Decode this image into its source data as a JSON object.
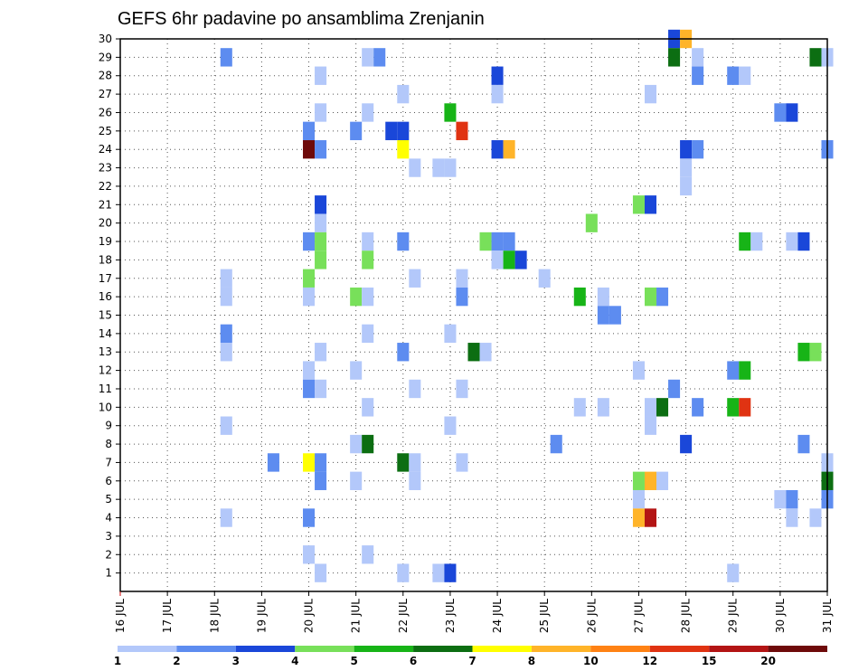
{
  "chart_data": {
    "type": "heatmap",
    "title": "GEFS 6hr padavine po ansamblima Zrenjanin",
    "xlabel": "",
    "ylabel": "",
    "x_tick_labels": [
      "16 JUL",
      "17 JUL",
      "18 JUL",
      "19 JUL",
      "20 JUL",
      "21 JUL",
      "22 JUL",
      "23 JUL",
      "24 JUL",
      "25 JUL",
      "26 JUL",
      "27 JUL",
      "28 JUL",
      "29 JUL",
      "30 JUL",
      "31 JUL"
    ],
    "y_tick_labels": [
      "1",
      "2",
      "3",
      "4",
      "5",
      "6",
      "7",
      "8",
      "9",
      "10",
      "11",
      "12",
      "13",
      "14",
      "15",
      "16",
      "17",
      "18",
      "19",
      "20",
      "21",
      "22",
      "23",
      "24",
      "25",
      "26",
      "27",
      "28",
      "29",
      "30"
    ],
    "xlim_days": [
      0,
      15
    ],
    "ylim_members": [
      0,
      30
    ],
    "grid": true,
    "legend": {
      "placement": "bottom",
      "boundaries": [
        "1",
        "2",
        "3",
        "4",
        "5",
        "6",
        "7",
        "8",
        "10",
        "12",
        "15",
        "20"
      ],
      "colors": [
        "#b3c8fa",
        "#5d8cf0",
        "#1a47d9",
        "#78e05a",
        "#17b417",
        "#0c6e12",
        "#ffff00",
        "#ffb429",
        "#ff8214",
        "#e03312",
        "#b31414",
        "#6e0a0a"
      ]
    },
    "value_unit": "mm per 6h (color class index 0-11)",
    "points": [
      {
        "day": 11.75,
        "member": 30,
        "level": 2
      },
      {
        "day": 12.0,
        "member": 30,
        "level": 7
      },
      {
        "day": 2.25,
        "member": 29,
        "level": 1
      },
      {
        "day": 5.25,
        "member": 29,
        "level": 0
      },
      {
        "day": 5.5,
        "member": 29,
        "level": 1
      },
      {
        "day": 11.75,
        "member": 29,
        "level": 5
      },
      {
        "day": 12.25,
        "member": 29,
        "level": 0
      },
      {
        "day": 14.75,
        "member": 29,
        "level": 5
      },
      {
        "day": 15.0,
        "member": 29,
        "level": 0
      },
      {
        "day": 4.25,
        "member": 28,
        "level": 0
      },
      {
        "day": 8.0,
        "member": 28,
        "level": 2
      },
      {
        "day": 12.25,
        "member": 28,
        "level": 1
      },
      {
        "day": 13.0,
        "member": 28,
        "level": 1
      },
      {
        "day": 13.25,
        "member": 28,
        "level": 0
      },
      {
        "day": 6.0,
        "member": 27,
        "level": 0
      },
      {
        "day": 8.0,
        "member": 27,
        "level": 0
      },
      {
        "day": 11.25,
        "member": 27,
        "level": 0
      },
      {
        "day": 4.25,
        "member": 26,
        "level": 0
      },
      {
        "day": 5.25,
        "member": 26,
        "level": 0
      },
      {
        "day": 7.0,
        "member": 26,
        "level": 4
      },
      {
        "day": 14.0,
        "member": 26,
        "level": 1
      },
      {
        "day": 14.25,
        "member": 26,
        "level": 2
      },
      {
        "day": 4.0,
        "member": 25,
        "level": 1
      },
      {
        "day": 5.0,
        "member": 25,
        "level": 1
      },
      {
        "day": 5.75,
        "member": 25,
        "level": 2
      },
      {
        "day": 6.0,
        "member": 25,
        "level": 2
      },
      {
        "day": 7.25,
        "member": 25,
        "level": 9
      },
      {
        "day": 4.0,
        "member": 24,
        "level": 11
      },
      {
        "day": 4.25,
        "member": 24,
        "level": 1
      },
      {
        "day": 6.0,
        "member": 24,
        "level": 6
      },
      {
        "day": 8.0,
        "member": 24,
        "level": 2
      },
      {
        "day": 8.25,
        "member": 24,
        "level": 7
      },
      {
        "day": 12.0,
        "member": 24,
        "level": 2
      },
      {
        "day": 12.25,
        "member": 24,
        "level": 1
      },
      {
        "day": 15.0,
        "member": 24,
        "level": 1
      },
      {
        "day": 6.25,
        "member": 23,
        "level": 0
      },
      {
        "day": 6.75,
        "member": 23,
        "level": 0
      },
      {
        "day": 7.0,
        "member": 23,
        "level": 0
      },
      {
        "day": 12.0,
        "member": 23,
        "level": 0
      },
      {
        "day": 12.0,
        "member": 22,
        "level": 0
      },
      {
        "day": 4.25,
        "member": 21,
        "level": 2
      },
      {
        "day": 11.0,
        "member": 21,
        "level": 3
      },
      {
        "day": 11.25,
        "member": 21,
        "level": 2
      },
      {
        "day": 4.25,
        "member": 20,
        "level": 0
      },
      {
        "day": 10.0,
        "member": 20,
        "level": 3
      },
      {
        "day": 4.0,
        "member": 19,
        "level": 1
      },
      {
        "day": 4.25,
        "member": 19,
        "level": 3
      },
      {
        "day": 5.25,
        "member": 19,
        "level": 0
      },
      {
        "day": 6.0,
        "member": 19,
        "level": 1
      },
      {
        "day": 7.75,
        "member": 19,
        "level": 3
      },
      {
        "day": 8.0,
        "member": 19,
        "level": 1
      },
      {
        "day": 8.25,
        "member": 19,
        "level": 1
      },
      {
        "day": 13.25,
        "member": 19,
        "level": 4
      },
      {
        "day": 13.5,
        "member": 19,
        "level": 0
      },
      {
        "day": 14.25,
        "member": 19,
        "level": 0
      },
      {
        "day": 14.5,
        "member": 19,
        "level": 2
      },
      {
        "day": 4.25,
        "member": 18,
        "level": 3
      },
      {
        "day": 5.25,
        "member": 18,
        "level": 3
      },
      {
        "day": 8.0,
        "member": 18,
        "level": 0
      },
      {
        "day": 8.25,
        "member": 18,
        "level": 4
      },
      {
        "day": 8.5,
        "member": 18,
        "level": 2
      },
      {
        "day": 4.0,
        "member": 17,
        "level": 3
      },
      {
        "day": 2.25,
        "member": 17,
        "level": 0
      },
      {
        "day": 6.25,
        "member": 17,
        "level": 0
      },
      {
        "day": 7.25,
        "member": 17,
        "level": 0
      },
      {
        "day": 9.0,
        "member": 17,
        "level": 0
      },
      {
        "day": 2.25,
        "member": 16,
        "level": 0
      },
      {
        "day": 7.25,
        "member": 16,
        "level": 1
      },
      {
        "day": 4.0,
        "member": 16,
        "level": 0
      },
      {
        "day": 5.0,
        "member": 16,
        "level": 3
      },
      {
        "day": 5.25,
        "member": 16,
        "level": 0
      },
      {
        "day": 9.75,
        "member": 16,
        "level": 4
      },
      {
        "day": 10.25,
        "member": 16,
        "level": 0
      },
      {
        "day": 11.25,
        "member": 16,
        "level": 3
      },
      {
        "day": 11.5,
        "member": 16,
        "level": 1
      },
      {
        "day": 10.25,
        "member": 15,
        "level": 1
      },
      {
        "day": 10.5,
        "member": 15,
        "level": 1
      },
      {
        "day": 2.25,
        "member": 14,
        "level": 1
      },
      {
        "day": 5.25,
        "member": 14,
        "level": 0
      },
      {
        "day": 7.0,
        "member": 14,
        "level": 0
      },
      {
        "day": 2.25,
        "member": 13,
        "level": 0
      },
      {
        "day": 4.25,
        "member": 13,
        "level": 0
      },
      {
        "day": 6.0,
        "member": 13,
        "level": 1
      },
      {
        "day": 7.5,
        "member": 13,
        "level": 5
      },
      {
        "day": 7.75,
        "member": 13,
        "level": 0
      },
      {
        "day": 14.5,
        "member": 13,
        "level": 4
      },
      {
        "day": 14.75,
        "member": 13,
        "level": 3
      },
      {
        "day": 4.0,
        "member": 12,
        "level": 0
      },
      {
        "day": 5.0,
        "member": 12,
        "level": 0
      },
      {
        "day": 11.0,
        "member": 12,
        "level": 0
      },
      {
        "day": 13.0,
        "member": 12,
        "level": 1
      },
      {
        "day": 13.25,
        "member": 12,
        "level": 4
      },
      {
        "day": 4.0,
        "member": 11,
        "level": 1
      },
      {
        "day": 4.25,
        "member": 11,
        "level": 0
      },
      {
        "day": 6.25,
        "member": 11,
        "level": 0
      },
      {
        "day": 7.25,
        "member": 11,
        "level": 0
      },
      {
        "day": 11.75,
        "member": 11,
        "level": 1
      },
      {
        "day": 5.25,
        "member": 10,
        "level": 0
      },
      {
        "day": 9.75,
        "member": 10,
        "level": 0
      },
      {
        "day": 10.25,
        "member": 10,
        "level": 0
      },
      {
        "day": 11.25,
        "member": 10,
        "level": 0
      },
      {
        "day": 11.5,
        "member": 10,
        "level": 5
      },
      {
        "day": 12.25,
        "member": 10,
        "level": 1
      },
      {
        "day": 13.0,
        "member": 10,
        "level": 4
      },
      {
        "day": 13.25,
        "member": 10,
        "level": 9
      },
      {
        "day": 2.25,
        "member": 9,
        "level": 0
      },
      {
        "day": 7.0,
        "member": 9,
        "level": 0
      },
      {
        "day": 11.25,
        "member": 9,
        "level": 0
      },
      {
        "day": 5.0,
        "member": 8,
        "level": 0
      },
      {
        "day": 5.25,
        "member": 8,
        "level": 5
      },
      {
        "day": 9.25,
        "member": 8,
        "level": 1
      },
      {
        "day": 12.0,
        "member": 8,
        "level": 2
      },
      {
        "day": 14.5,
        "member": 8,
        "level": 1
      },
      {
        "day": 3.25,
        "member": 7,
        "level": 1
      },
      {
        "day": 4.0,
        "member": 7,
        "level": 6
      },
      {
        "day": 4.25,
        "member": 7,
        "level": 1
      },
      {
        "day": 6.0,
        "member": 7,
        "level": 5
      },
      {
        "day": 6.25,
        "member": 7,
        "level": 0
      },
      {
        "day": 7.25,
        "member": 7,
        "level": 0
      },
      {
        "day": 15.0,
        "member": 7,
        "level": 0
      },
      {
        "day": 4.25,
        "member": 6,
        "level": 1
      },
      {
        "day": 5.0,
        "member": 6,
        "level": 0
      },
      {
        "day": 6.25,
        "member": 6,
        "level": 0
      },
      {
        "day": 11.0,
        "member": 6,
        "level": 3
      },
      {
        "day": 11.25,
        "member": 6,
        "level": 7
      },
      {
        "day": 11.5,
        "member": 6,
        "level": 0
      },
      {
        "day": 15.0,
        "member": 6,
        "level": 5
      },
      {
        "day": 11.0,
        "member": 5,
        "level": 0
      },
      {
        "day": 14.0,
        "member": 5,
        "level": 0
      },
      {
        "day": 14.25,
        "member": 5,
        "level": 1
      },
      {
        "day": 15.0,
        "member": 5,
        "level": 1
      },
      {
        "day": 2.25,
        "member": 4,
        "level": 0
      },
      {
        "day": 4.0,
        "member": 4,
        "level": 1
      },
      {
        "day": 11.0,
        "member": 4,
        "level": 7
      },
      {
        "day": 11.25,
        "member": 4,
        "level": 10
      },
      {
        "day": 14.25,
        "member": 4,
        "level": 0
      },
      {
        "day": 14.75,
        "member": 4,
        "level": 0
      },
      {
        "day": 4.0,
        "member": 2,
        "level": 0
      },
      {
        "day": 5.25,
        "member": 2,
        "level": 0
      },
      {
        "day": 4.25,
        "member": 1,
        "level": 0
      },
      {
        "day": 6.0,
        "member": 1,
        "level": 0
      },
      {
        "day": 6.75,
        "member": 1,
        "level": 0
      },
      {
        "day": 7.0,
        "member": 1,
        "level": 2
      },
      {
        "day": 13.0,
        "member": 1,
        "level": 0
      }
    ]
  }
}
